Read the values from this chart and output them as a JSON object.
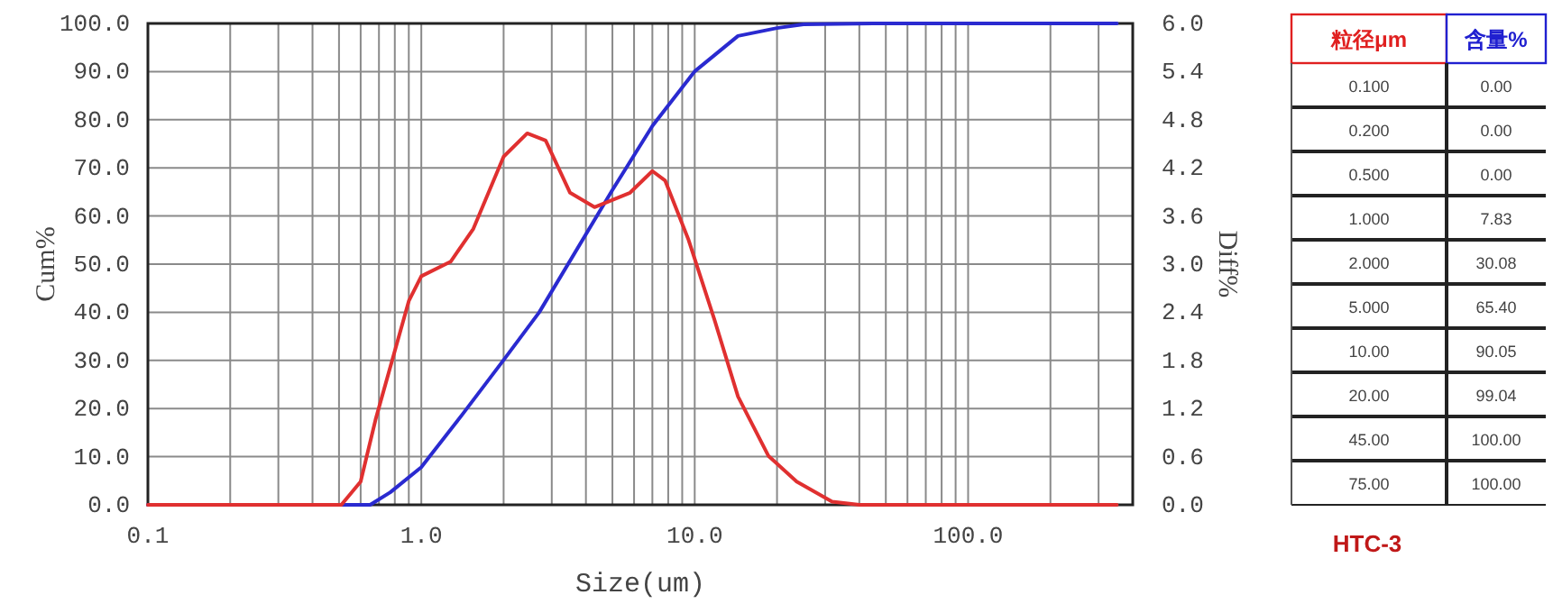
{
  "chart_data": [
    {
      "type": "line",
      "xlabel": "Size(um)",
      "ylabel": "Cum%",
      "y2label": "Diff%",
      "log": "x",
      "grid": true,
      "xlim": [
        0.1,
        400
      ],
      "ylim": [
        0,
        100
      ],
      "y2lim": [
        0,
        6
      ],
      "xticks": [
        {
          "value": 0.1,
          "label": "0.1"
        },
        {
          "value": 0.2,
          "label": null
        },
        {
          "value": 0.3,
          "label": null
        },
        {
          "value": 0.4,
          "label": null
        },
        {
          "value": 0.5,
          "label": null
        },
        {
          "value": 0.6,
          "label": null
        },
        {
          "value": 0.7,
          "label": null
        },
        {
          "value": 0.8,
          "label": null
        },
        {
          "value": 0.9,
          "label": null
        },
        {
          "value": 1,
          "label": "1.0"
        },
        {
          "value": 2,
          "label": null
        },
        {
          "value": 3,
          "label": null
        },
        {
          "value": 4,
          "label": null
        },
        {
          "value": 5,
          "label": null
        },
        {
          "value": 6,
          "label": null
        },
        {
          "value": 7,
          "label": null
        },
        {
          "value": 8,
          "label": null
        },
        {
          "value": 9,
          "label": null
        },
        {
          "value": 10,
          "label": "10.0"
        },
        {
          "value": 20,
          "label": null
        },
        {
          "value": 30,
          "label": null
        },
        {
          "value": 40,
          "label": null
        },
        {
          "value": 50,
          "label": null
        },
        {
          "value": 60,
          "label": null
        },
        {
          "value": 70,
          "label": null
        },
        {
          "value": 80,
          "label": null
        },
        {
          "value": 90,
          "label": null
        },
        {
          "value": 100,
          "label": "100.0"
        },
        {
          "value": 200,
          "label": null
        },
        {
          "value": 300,
          "label": null
        }
      ],
      "yticks": [
        {
          "value": 0,
          "label": "0.0"
        },
        {
          "value": 10,
          "label": "10.0"
        },
        {
          "value": 20,
          "label": "20.0"
        },
        {
          "value": 30,
          "label": "30.0"
        },
        {
          "value": 40,
          "label": "40.0"
        },
        {
          "value": 50,
          "label": "50.0"
        },
        {
          "value": 60,
          "label": "60.0"
        },
        {
          "value": 70,
          "label": "70.0"
        },
        {
          "value": 80,
          "label": "80.0"
        },
        {
          "value": 90,
          "label": "90.0"
        },
        {
          "value": 100,
          "label": "100.0"
        }
      ],
      "y2ticks": [
        {
          "value": 0,
          "label": "0.0"
        },
        {
          "value": 0.6,
          "label": "0.6"
        },
        {
          "value": 1.2,
          "label": "1.2"
        },
        {
          "value": 1.8,
          "label": "1.8"
        },
        {
          "value": 2.4,
          "label": "2.4"
        },
        {
          "value": 3,
          "label": "3.0"
        },
        {
          "value": 3.6,
          "label": "3.6"
        },
        {
          "value": 4.2,
          "label": "4.2"
        },
        {
          "value": 4.8,
          "label": "4.8"
        },
        {
          "value": 5.4,
          "label": "5.4"
        },
        {
          "value": 6,
          "label": "6.0"
        }
      ],
      "series": [
        {
          "color": "#2a2ad0",
          "x": [
            0.1,
            0.2,
            0.5,
            0.65,
            0.77,
            1,
            1.41,
            2,
            2.7,
            5,
            7,
            10,
            14.4,
            20,
            25,
            45,
            75,
            350
          ],
          "values": [
            0,
            0,
            0,
            0,
            2.6,
            7.83,
            18.7,
            30.08,
            40,
            65.4,
            78.7,
            90.05,
            97.4,
            99.04,
            99.8,
            100,
            100,
            100
          ]
        },
        {
          "color": "#e03030",
          "axis": "y2",
          "x": [
            0.1,
            0.51,
            0.6,
            0.68,
            0.9,
            1,
            1.28,
            1.55,
            2,
            2.44,
            2.85,
            3.5,
            4.3,
            5.8,
            7,
            7.8,
            9.5,
            11.8,
            14.4,
            18.6,
            23.6,
            31.8,
            40,
            350
          ],
          "values": [
            0,
            0,
            0.29,
            1.06,
            2.54,
            2.85,
            3.03,
            3.44,
            4.34,
            4.63,
            4.54,
            3.89,
            3.71,
            3.89,
            4.16,
            4.04,
            3.3,
            2.31,
            1.35,
            0.61,
            0.29,
            0.04,
            0,
            0
          ]
        }
      ]
    },
    {
      "type": "other",
      "title": "HTC-3",
      "categories": [
        "粒径μm",
        "含量%"
      ],
      "colors": [
        "#e02020",
        "#2020d0"
      ],
      "annotations": [
        "0.100",
        "0.00",
        "0.200",
        "0.00",
        "0.500",
        "0.00",
        "1.000",
        "7.83",
        "2.000",
        "30.08",
        "5.000",
        "65.40",
        "10.00",
        "90.05",
        "20.00",
        "99.04",
        "45.00",
        "100.00",
        "75.00",
        "100.00"
      ]
    }
  ]
}
